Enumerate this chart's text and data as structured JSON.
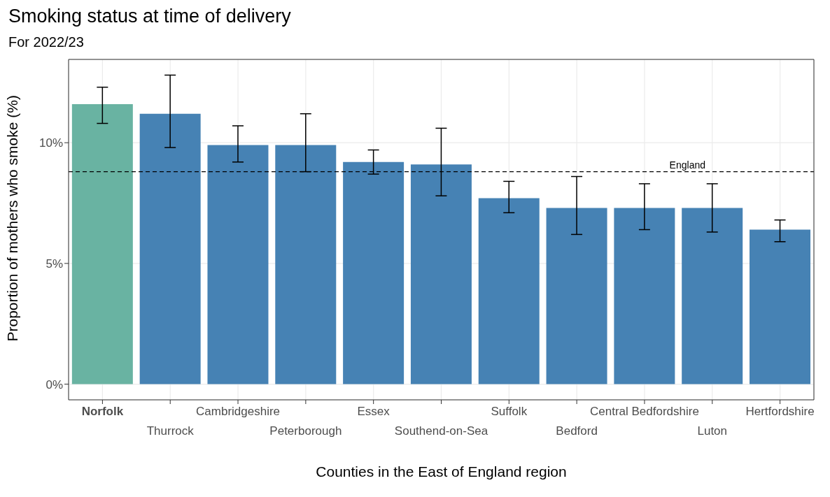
{
  "chart_data": {
    "type": "bar",
    "title": "Smoking status at time of delivery",
    "subtitle": "For 2022/23",
    "xlabel": "Counties in the East of England region",
    "ylabel": "Proportion of mothers who smoke (%)",
    "categories": [
      "Norfolk",
      "Thurrock",
      "Cambridgeshire",
      "Peterborough",
      "Essex",
      "Southend-on-Sea",
      "Suffolk",
      "Bedford",
      "Central Bedfordshire",
      "Luton",
      "Hertfordshire"
    ],
    "values": [
      11.6,
      11.2,
      9.9,
      9.9,
      9.2,
      9.1,
      7.7,
      7.3,
      7.3,
      7.3,
      6.4
    ],
    "colors": [
      "#69b3a2",
      "#4682b4",
      "#4682b4",
      "#4682b4",
      "#4682b4",
      "#4682b4",
      "#4682b4",
      "#4682b4",
      "#4682b4",
      "#4682b4",
      "#4682b4"
    ],
    "errors": [
      [
        10.8,
        12.3
      ],
      [
        9.8,
        12.8
      ],
      [
        9.2,
        10.7
      ],
      [
        8.8,
        11.2
      ],
      [
        8.7,
        9.7
      ],
      [
        7.8,
        10.6
      ],
      [
        7.1,
        8.4
      ],
      [
        6.2,
        8.6
      ],
      [
        6.4,
        8.3
      ],
      [
        6.3,
        8.3
      ],
      [
        5.9,
        6.8
      ]
    ],
    "ylim": [
      -0.65,
      13.45
    ],
    "yticks": [
      {
        "value": 0,
        "label": "0%"
      },
      {
        "value": 5,
        "label": "5%"
      },
      {
        "value": 10,
        "label": "10%"
      }
    ],
    "ref_lines": [
      {
        "axis": "y",
        "value": 8.8,
        "label": "England",
        "color": "#000000",
        "line_style": "dashed"
      }
    ],
    "grid": true
  }
}
